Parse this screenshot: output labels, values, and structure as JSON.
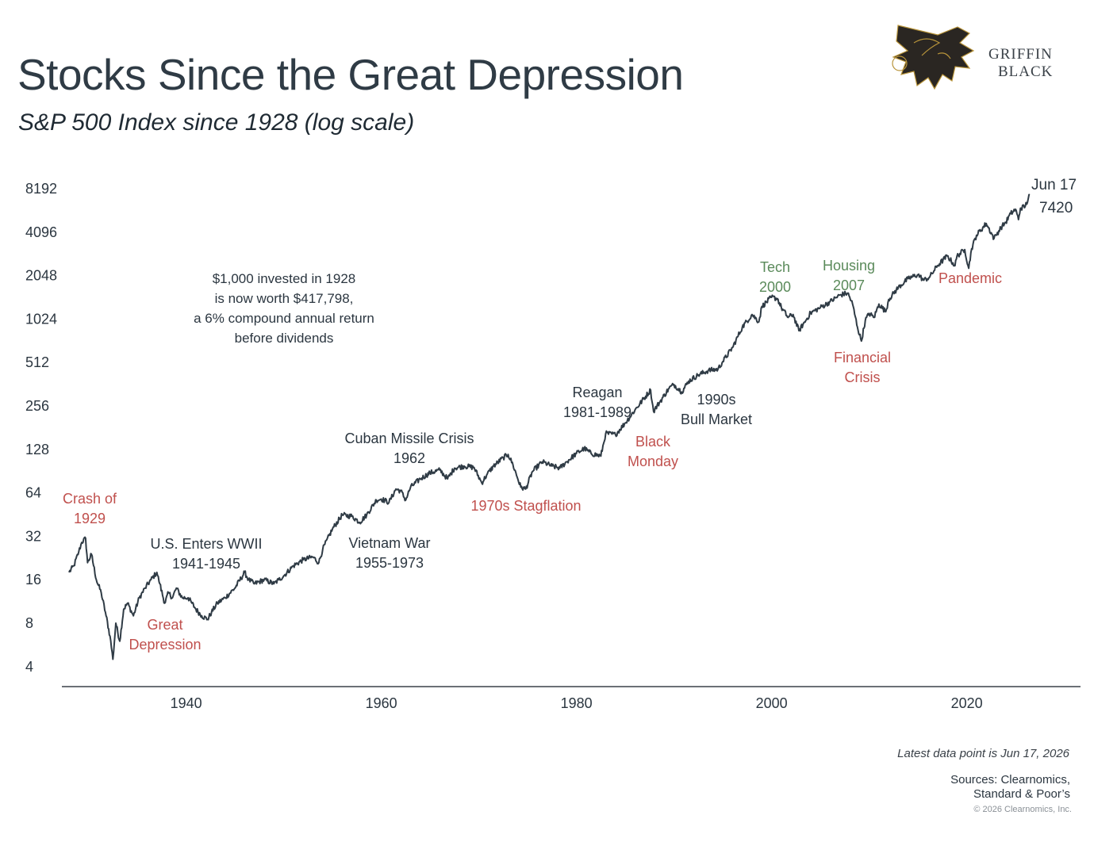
{
  "title": "Stocks Since the Great Depression",
  "subtitle": "S&P 500 Index since 1928 (log scale)",
  "logo": {
    "line1": "GRIFFIN",
    "line2": "BLACK",
    "icon": "griffin-crest-icon"
  },
  "colors": {
    "line": "#2f3b45",
    "red_annotation": "#c0504d",
    "green_annotation": "#5a8a5a",
    "text": "#2b3640"
  },
  "chart_data": {
    "type": "line",
    "y_scale": "log2",
    "ylim": [
      4,
      8192
    ],
    "xlim": [
      1928,
      2026.5
    ],
    "y_ticks": [
      "8192",
      "4096",
      "2048",
      "1024",
      "512",
      "256",
      "128",
      "64",
      "32",
      "16",
      "8",
      "4"
    ],
    "y_tick_values": [
      8192,
      4096,
      2048,
      1024,
      512,
      256,
      128,
      64,
      32,
      16,
      8,
      4
    ],
    "x_ticks": [
      "1940",
      "1960",
      "1980",
      "2000",
      "2020"
    ],
    "x_tick_values": [
      1940,
      1960,
      1980,
      2000,
      2020
    ],
    "grid": false,
    "series": [
      {
        "x": [
          1928.0,
          1928.5,
          1929.0,
          1929.3,
          1929.7,
          1929.9,
          1930.3,
          1930.8,
          1931.3,
          1931.8,
          1932.2,
          1932.5,
          1932.8,
          1933.2,
          1933.6,
          1934.0,
          1934.6,
          1935.2,
          1935.8,
          1936.4,
          1937.0,
          1937.3,
          1937.8,
          1938.2,
          1938.6,
          1939.0,
          1939.6,
          1940.2,
          1940.6,
          1941.0,
          1941.6,
          1942.2,
          1942.6,
          1943.2,
          1944.0,
          1945.0,
          1946.0,
          1946.4,
          1947.0,
          1948.0,
          1949.0,
          1949.5,
          1950.0,
          1951.0,
          1952.0,
          1953.0,
          1953.6,
          1954.0,
          1955.0,
          1956.0,
          1957.0,
          1957.8,
          1958.5,
          1959.5,
          1960.0,
          1960.8,
          1961.5,
          1962.0,
          1962.5,
          1963.0,
          1964.0,
          1965.0,
          1966.0,
          1966.8,
          1967.5,
          1968.5,
          1969.5,
          1970.3,
          1970.8,
          1971.5,
          1972.5,
          1973.0,
          1973.5,
          1974.3,
          1974.8,
          1975.5,
          1976.5,
          1977.5,
          1978.3,
          1979.0,
          1980.0,
          1980.8,
          1981.5,
          1982.5,
          1983.0,
          1984.0,
          1985.0,
          1986.0,
          1987.6,
          1987.9,
          1988.5,
          1989.5,
          1990.0,
          1990.8,
          1991.5,
          1992.5,
          1993.5,
          1994.5,
          1995.0,
          1996.0,
          1997.0,
          1998.0,
          1998.7,
          1999.0,
          2000.0,
          2000.6,
          2001.0,
          2001.7,
          2002.2,
          2002.8,
          2003.5,
          2004.0,
          2005.0,
          2006.0,
          2007.0,
          2007.8,
          2008.3,
          2008.8,
          2009.2,
          2009.6,
          2010.0,
          2010.5,
          2011.0,
          2011.7,
          2012.0,
          2013.0,
          2014.0,
          2015.0,
          2015.6,
          2016.2,
          2017.0,
          2018.0,
          2018.8,
          2019.0,
          2019.8,
          2020.2,
          2020.5,
          2021.0,
          2022.0,
          2022.8,
          2023.0,
          2023.5,
          2024.0,
          2024.5,
          2025.0,
          2025.3,
          2025.5,
          2026.0,
          2026.46
        ],
        "values": [
          18,
          20,
          25,
          29,
          31,
          21,
          24,
          16,
          13,
          9,
          6.5,
          4.5,
          8,
          6,
          10,
          11,
          9,
          12,
          14,
          16,
          18,
          15,
          11,
          13,
          12,
          14,
          12,
          12,
          11,
          10,
          9,
          8.5,
          9.5,
          11,
          12,
          14,
          18,
          16,
          15,
          16,
          15,
          16,
          17,
          20,
          22,
          23,
          21,
          26,
          36,
          45,
          44,
          40,
          45,
          57,
          58,
          55,
          68,
          66,
          57,
          70,
          80,
          88,
          92,
          80,
          95,
          98,
          96,
          75,
          85,
          98,
          112,
          118,
          100,
          70,
          68,
          90,
          105,
          98,
          95,
          105,
          120,
          130,
          120,
          115,
          165,
          162,
          195,
          240,
          330,
          235,
          270,
          340,
          360,
          320,
          380,
          420,
          450,
          460,
          520,
          650,
          900,
          1100,
          980,
          1250,
          1450,
          1420,
          1230,
          1050,
          1100,
          850,
          1000,
          1130,
          1230,
          1350,
          1500,
          1550,
          1300,
          900,
          720,
          1000,
          1120,
          1050,
          1300,
          1150,
          1400,
          1700,
          1950,
          2080,
          1900,
          2000,
          2400,
          2800,
          2400,
          2800,
          3100,
          2300,
          3150,
          3900,
          4700,
          3700,
          3900,
          4400,
          4800,
          5500,
          5900,
          5000,
          6000,
          6200,
          7420
        ]
      }
    ],
    "endpoint_label": {
      "date": "Jun 17",
      "value": "7420"
    },
    "annotations": [
      {
        "id": "crash1929",
        "lines": [
          "Crash of",
          "1929"
        ],
        "color": "red"
      },
      {
        "id": "great_depression",
        "lines": [
          "Great",
          "Depression"
        ],
        "color": "red"
      },
      {
        "id": "wwii",
        "lines": [
          "U.S. Enters WWII",
          "1941-1945"
        ],
        "color": "dark"
      },
      {
        "id": "vietnam",
        "lines": [
          "Vietnam War",
          "1955-1973"
        ],
        "color": "dark"
      },
      {
        "id": "cuban",
        "lines": [
          "Cuban Missile Crisis",
          "1962"
        ],
        "color": "dark"
      },
      {
        "id": "stagflation",
        "lines": [
          "1970s Stagflation"
        ],
        "color": "red"
      },
      {
        "id": "reagan",
        "lines": [
          "Reagan",
          "1981-1989"
        ],
        "color": "dark"
      },
      {
        "id": "black_monday",
        "lines": [
          "Black",
          "Monday"
        ],
        "color": "red"
      },
      {
        "id": "bull90s",
        "lines": [
          "1990s",
          "Bull Market"
        ],
        "color": "dark"
      },
      {
        "id": "tech2000",
        "lines": [
          "Tech",
          "2000"
        ],
        "color": "green"
      },
      {
        "id": "housing2007",
        "lines": [
          "Housing",
          "2007"
        ],
        "color": "green"
      },
      {
        "id": "financial_crisis",
        "lines": [
          "Financial",
          "Crisis"
        ],
        "color": "red"
      },
      {
        "id": "pandemic",
        "lines": [
          "Pandemic"
        ],
        "color": "red"
      }
    ],
    "callout": [
      "$1,000 invested in 1928",
      "is now worth $417,798,",
      "a 6% compound annual return",
      "before dividends"
    ]
  },
  "footer": {
    "latest": "Latest data point is Jun 17, 2026",
    "sources_line1": "Sources: Clearnomics,",
    "sources_line2": "Standard & Poor’s",
    "copyright": "© 2026 Clearnomics, Inc."
  }
}
